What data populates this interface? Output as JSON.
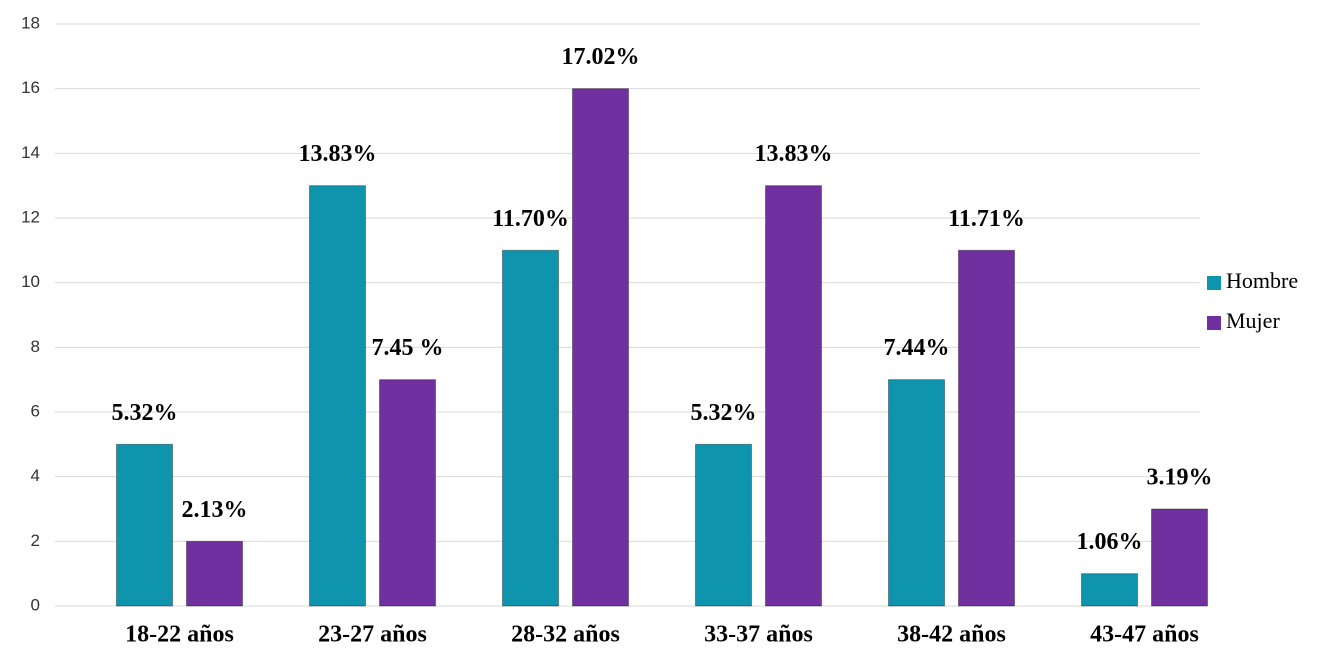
{
  "chart_data": {
    "type": "bar",
    "categories": [
      "18-22 años",
      "23-27 años",
      "28-32 años",
      "33-37 años",
      "38-42 años",
      "43-47 años"
    ],
    "series": [
      {
        "name": "Hombre",
        "color": "#0e95ad",
        "values": [
          5,
          13,
          11,
          5,
          7,
          1
        ],
        "percent_labels": [
          "5.32%",
          "13.83%",
          "11.70%",
          "5.32%",
          "7.44%",
          "1.06%"
        ]
      },
      {
        "name": "Mujer",
        "color": "#7030a0",
        "values": [
          2,
          7,
          16,
          13,
          11,
          3
        ],
        "percent_labels": [
          "2.13%",
          "7.45 %",
          "17.02%",
          "13.83%",
          "11.71%",
          "3.19%"
        ]
      }
    ],
    "ylim": [
      0,
      18
    ],
    "yticks": [
      0,
      2,
      4,
      6,
      8,
      10,
      12,
      14,
      16,
      18
    ],
    "grid": true,
    "legend": "right"
  }
}
